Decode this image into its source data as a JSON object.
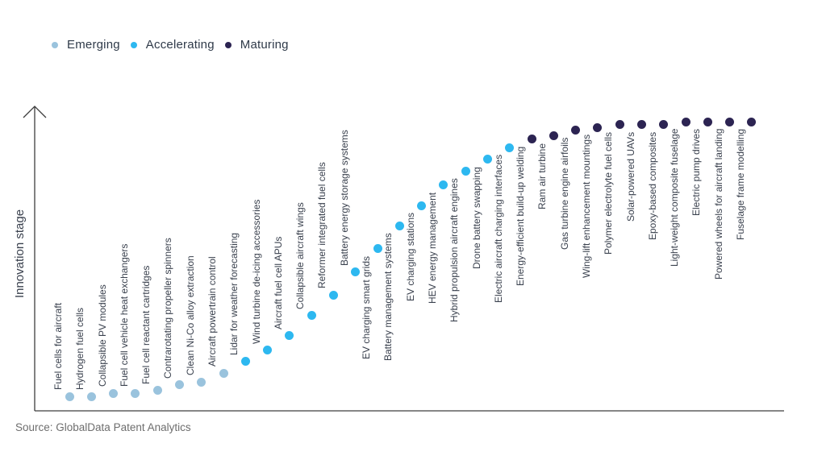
{
  "legend": {
    "items": [
      {
        "label": "Emerging",
        "color": "#9AC3DD"
      },
      {
        "label": "Accelerating",
        "color": "#2DB8F0"
      },
      {
        "label": "Maturing",
        "color": "#2C2452"
      }
    ]
  },
  "y_axis": {
    "label": "Innovation stage"
  },
  "source": {
    "text": "Source: GlobalData Patent Analytics"
  },
  "chart_data": {
    "type": "scatter",
    "title": "",
    "xlabel": "",
    "ylabel": "Innovation stage",
    "legend_position": "top-left",
    "grid": false,
    "ylim": [
      0,
      100
    ],
    "y_meaning": "qualitative innovation-stage score (estimated from dot height, 0-100)",
    "stage_colors": {
      "Emerging": "#9AC3DD",
      "Accelerating": "#2DB8F0",
      "Maturing": "#2C2452"
    },
    "points": [
      {
        "label": "Fuel cells for aircraft",
        "stage": "Emerging",
        "value": 5
      },
      {
        "label": "Hydrogen fuel cells",
        "stage": "Emerging",
        "value": 5
      },
      {
        "label": "Collapsible PV modules",
        "stage": "Emerging",
        "value": 6
      },
      {
        "label": "Fuel cell vehicle heat exchangers",
        "stage": "Emerging",
        "value": 6
      },
      {
        "label": "Fuel cell reactant cartridges",
        "stage": "Emerging",
        "value": 7
      },
      {
        "label": "Contrarotating propeller spinners",
        "stage": "Emerging",
        "value": 9
      },
      {
        "label": "Clean Ni-Co alloy extraction",
        "stage": "Emerging",
        "value": 10
      },
      {
        "label": "Aircraft powertrain control",
        "stage": "Emerging",
        "value": 13
      },
      {
        "label": "Lidar for weather forecasting",
        "stage": "Accelerating",
        "value": 17
      },
      {
        "label": "Wind turbine de-icing accessories",
        "stage": "Accelerating",
        "value": 21
      },
      {
        "label": "Aircraft fuel cell APUs",
        "stage": "Accelerating",
        "value": 26
      },
      {
        "label": "Collapsible aircraft wings",
        "stage": "Accelerating",
        "value": 33
      },
      {
        "label": "Reformer integrated fuel cells",
        "stage": "Accelerating",
        "value": 40
      },
      {
        "label": "Battery energy storage systems",
        "stage": "Accelerating",
        "value": 48
      },
      {
        "label": "EV charging smart grids",
        "stage": "Accelerating",
        "value": 56
      },
      {
        "label": "Battery management systems",
        "stage": "Accelerating",
        "value": 64
      },
      {
        "label": "EV charging stations",
        "stage": "Accelerating",
        "value": 71
      },
      {
        "label": "HEV energy management",
        "stage": "Accelerating",
        "value": 78
      },
      {
        "label": "Hybrid propulsion aircraft engines",
        "stage": "Accelerating",
        "value": 83
      },
      {
        "label": "Drone battery swapping",
        "stage": "Accelerating",
        "value": 87
      },
      {
        "label": "Electric aircraft charging interfaces",
        "stage": "Accelerating",
        "value": 91
      },
      {
        "label": "Energy-efficient build-up welding",
        "stage": "Maturing",
        "value": 94
      },
      {
        "label": "Ram air turbine",
        "stage": "Maturing",
        "value": 95
      },
      {
        "label": "Gas turbine engine airfoils",
        "stage": "Maturing",
        "value": 97
      },
      {
        "label": "Wing-lift enhancement mountings",
        "stage": "Maturing",
        "value": 98
      },
      {
        "label": "Polymer electrolyte fuel cells",
        "stage": "Maturing",
        "value": 99
      },
      {
        "label": "Solar-powered UAVs",
        "stage": "Maturing",
        "value": 99
      },
      {
        "label": "Epoxy-based composites",
        "stage": "Maturing",
        "value": 99
      },
      {
        "label": "Light-weight composite fuselage",
        "stage": "Maturing",
        "value": 100
      },
      {
        "label": "Electric pump drives",
        "stage": "Maturing",
        "value": 100
      },
      {
        "label": "Powered wheels for aircraft landing",
        "stage": "Maturing",
        "value": 100
      },
      {
        "label": "Fuselage frame modelling",
        "stage": "Maturing",
        "value": 100
      }
    ]
  }
}
